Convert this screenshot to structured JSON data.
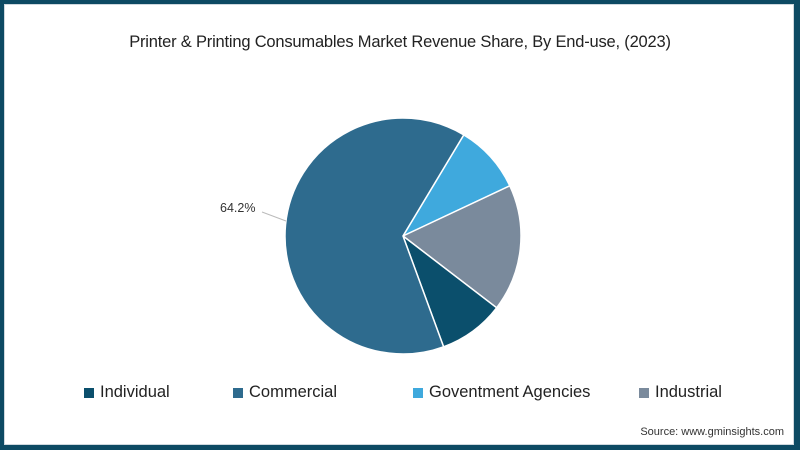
{
  "chart_data": {
    "type": "pie",
    "title": "Printer & Printing Consumables Market Revenue Share, By End-use, (2023)",
    "categories": [
      "Individual",
      "Commercial",
      "Goventment Agencies",
      "Industrial"
    ],
    "values": [
      9.0,
      64.2,
      9.4,
      17.4
    ],
    "unit": "%",
    "colors": [
      "#0b4f6c",
      "#2e6b8e",
      "#3fa9dd",
      "#7a8a9c"
    ],
    "annotations": [
      {
        "category": "Commercial",
        "label": "64.2%"
      }
    ],
    "legend_position": "bottom",
    "slice_order_clockwise_from_top": [
      "Goventment Agencies",
      "Industrial",
      "Individual",
      "Commercial"
    ]
  },
  "title": "Printer & Printing Consumables Market Revenue Share, By End-use, (2023)",
  "callout_label": "64.2%",
  "legend": [
    {
      "label": "Individual",
      "color": "#0b4f6c"
    },
    {
      "label": "Commercial",
      "color": "#2e6b8e"
    },
    {
      "label": "Goventment Agencies",
      "color": "#3fa9dd"
    },
    {
      "label": "Industrial",
      "color": "#7a8a9c"
    }
  ],
  "source": "Source: www.gminsights.com"
}
